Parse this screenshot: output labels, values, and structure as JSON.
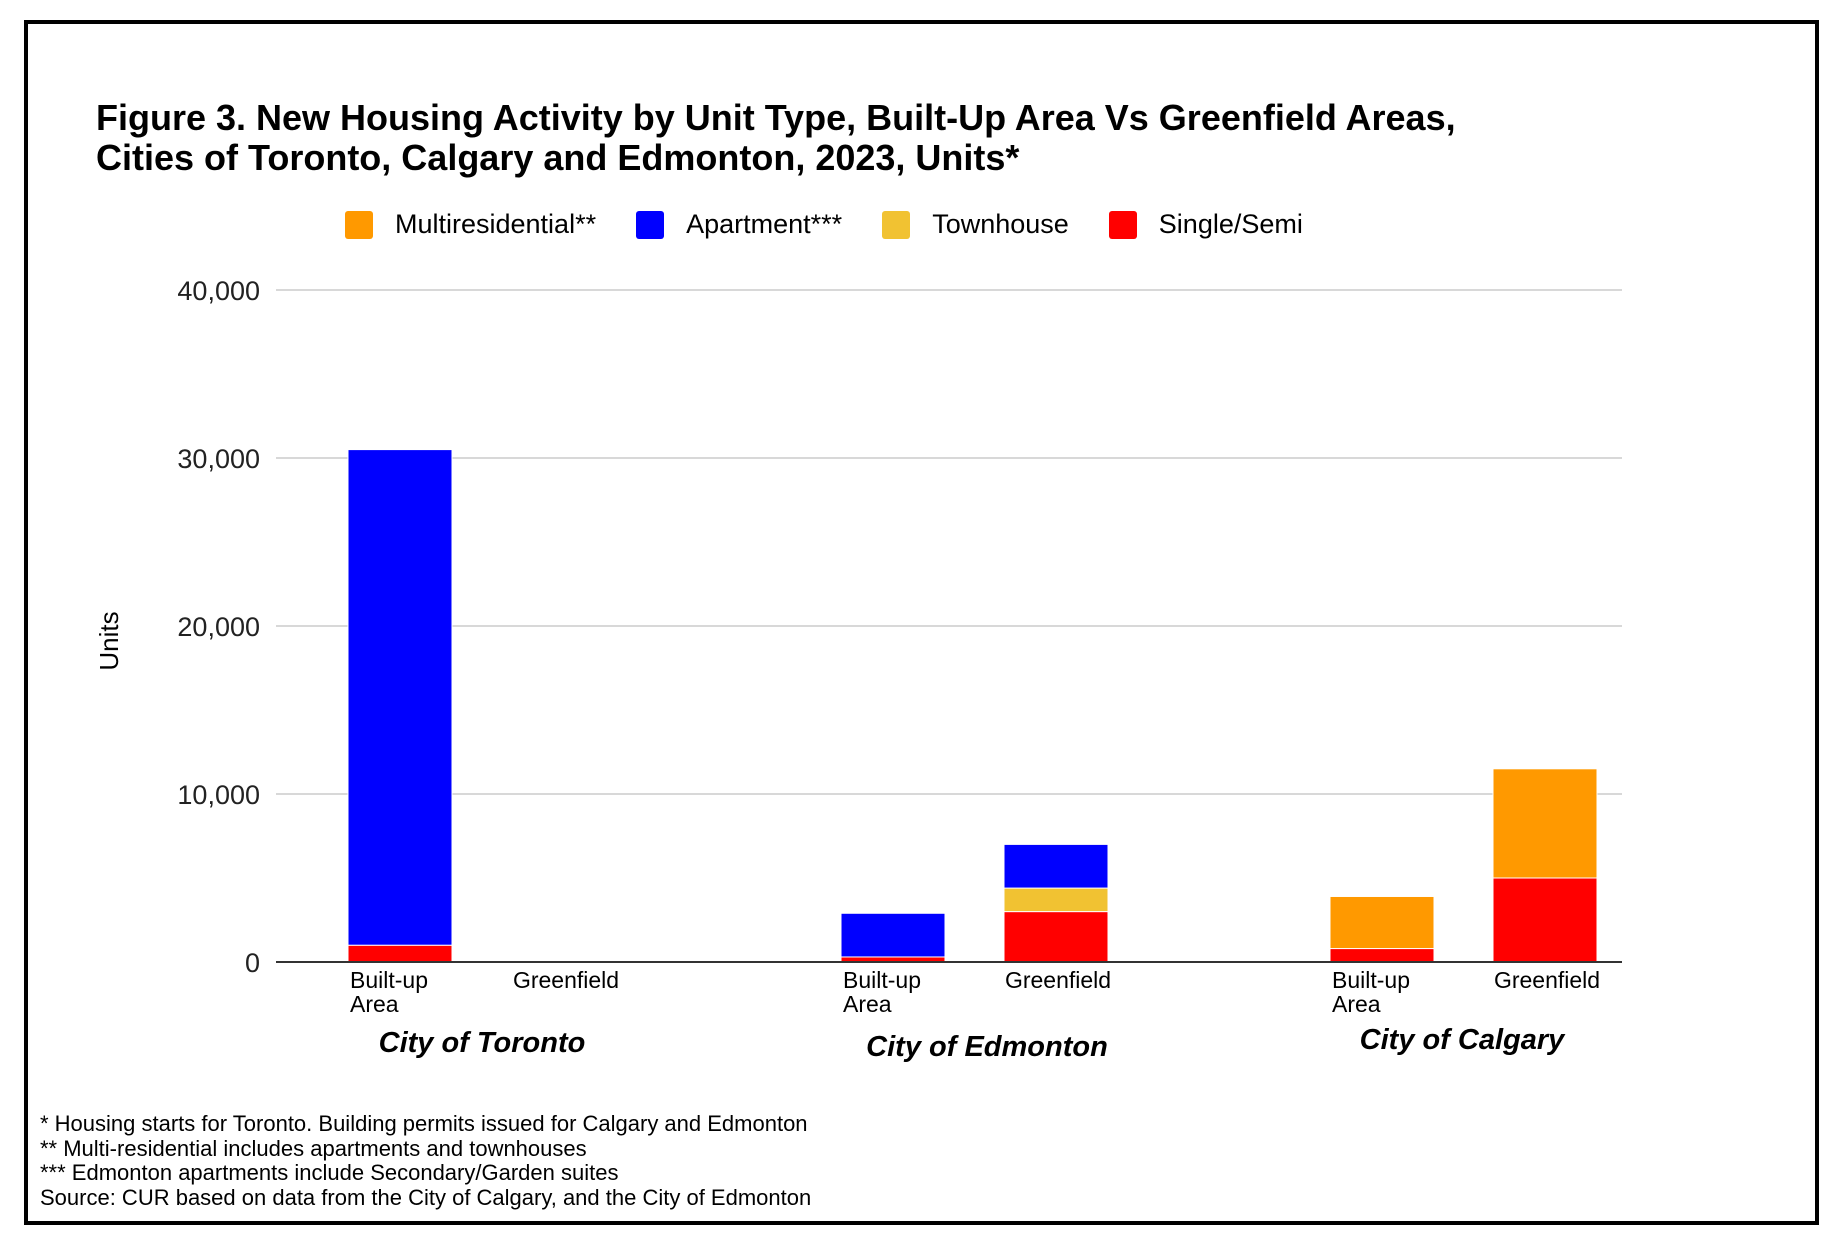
{
  "title_lines": [
    "Figure 3. New Housing Activity by Unit Type, Built-Up Area Vs Greenfield Areas,",
    "Cities of Toronto, Calgary and Edmonton, 2023, Units*"
  ],
  "notes": [
    "* Housing starts for Toronto. Building permits issued for Calgary and Edmonton",
    "** Multi-residential includes apartments and townhouses",
    "*** Edmonton apartments include Secondary/Garden suites",
    "Source: CUR based on data from the City of Calgary, and the City of Edmonton"
  ],
  "chart_data": {
    "type": "bar",
    "stacked": true,
    "title": "Figure 3. New Housing Activity by Unit Type, Built-Up Area Vs Greenfield Areas, Cities of Toronto, Calgary and Edmonton, 2023, Units*",
    "xlabel": "",
    "ylabel": "Units",
    "ylim": [
      0,
      40000
    ],
    "yticks": [
      0,
      10000,
      20000,
      30000,
      40000
    ],
    "ytick_labels": [
      "0",
      "10,000",
      "20,000",
      "30,000",
      "40,000"
    ],
    "grid": true,
    "legend_position": "top",
    "legend": [
      "Multiresidential**",
      "Apartment***",
      "Townhouse",
      "Single/Semi"
    ],
    "groups": [
      {
        "label": "City of Toronto",
        "categories": [
          [
            "Built-up",
            "Area"
          ],
          [
            "Greenfield"
          ]
        ]
      },
      {
        "label": "City of Edmonton",
        "categories": [
          [
            "Built-up",
            "Area"
          ],
          [
            "Greenfield"
          ]
        ]
      },
      {
        "label": "City of Calgary",
        "categories": [
          [
            "Built-up",
            "Area"
          ],
          [
            "Greenfield"
          ]
        ]
      }
    ],
    "categories": [
      "City of Toronto - Built-up Area",
      "City of Toronto - Greenfield",
      "City of Edmonton - Built-up Area",
      "City of Edmonton - Greenfield",
      "City of Calgary - Built-up Area",
      "City of Calgary - Greenfield"
    ],
    "series": [
      {
        "name": "Single/Semi",
        "color": "#ff0000",
        "values": [
          1000,
          0,
          300,
          3000,
          800,
          5000
        ]
      },
      {
        "name": "Townhouse",
        "color": "#f1c232",
        "values": [
          0,
          0,
          0,
          1400,
          0,
          0
        ]
      },
      {
        "name": "Apartment***",
        "color": "#0000ff",
        "values": [
          29500,
          0,
          2600,
          2600,
          0,
          0
        ]
      },
      {
        "name": "Multiresidential**",
        "color": "#ff9900",
        "values": [
          0,
          0,
          0,
          0,
          3100,
          6500
        ]
      }
    ]
  }
}
